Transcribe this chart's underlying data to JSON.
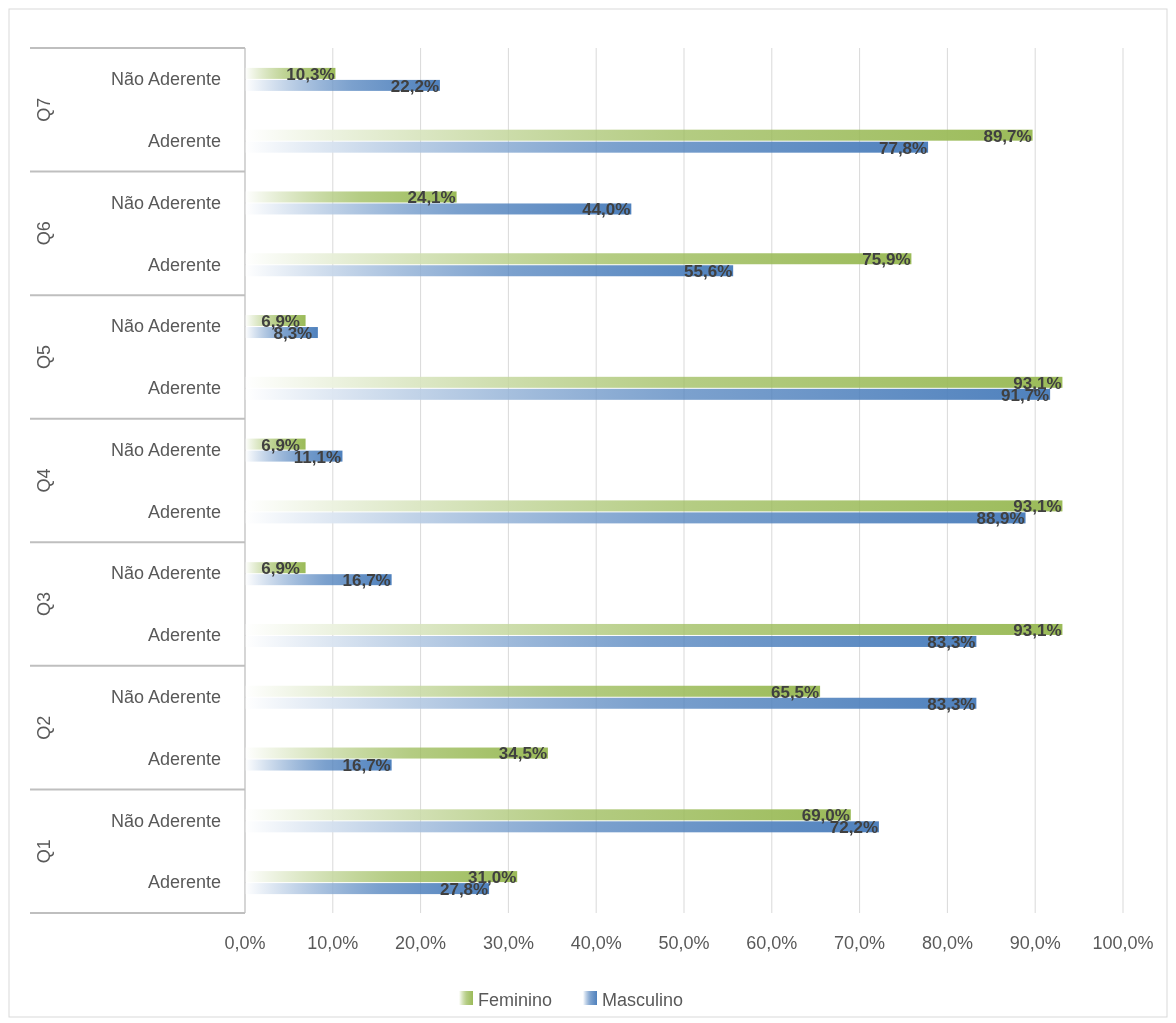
{
  "chart_data": {
    "type": "bar",
    "orientation": "horizontal",
    "categories": [
      "Não Aderente",
      "Aderente",
      "Não Aderente",
      "Aderente",
      "Não Aderente",
      "Aderente",
      "Não Aderente",
      "Aderente",
      "Não Aderente",
      "Aderente",
      "Não Aderente",
      "Aderente",
      "Não Aderente",
      "Aderente"
    ],
    "annotations": [
      "Q7",
      "Q6",
      "Q5",
      "Q4",
      "Q3",
      "Q2",
      "Q1"
    ],
    "series": [
      {
        "name": "Feminino",
        "color": "#9bbb59",
        "values": [
          10.3,
          89.7,
          24.1,
          75.9,
          6.9,
          93.1,
          6.9,
          93.1,
          6.9,
          93.1,
          65.5,
          34.5,
          69.0,
          31.0
        ],
        "value_labels": [
          "10,3%",
          "89,7%",
          "24,1%",
          "75,9%",
          "6,9%",
          "93,1%",
          "6,9%",
          "93,1%",
          "6,9%",
          "93,1%",
          "65,5%",
          "34,5%",
          "69,0%",
          "31,0%"
        ]
      },
      {
        "name": "Masculino",
        "color": "#4f81bd",
        "values": [
          22.2,
          77.8,
          44.0,
          55.6,
          8.3,
          91.7,
          11.1,
          88.9,
          16.7,
          83.3,
          83.3,
          16.7,
          72.2,
          27.8
        ],
        "value_labels": [
          "22,2%",
          "77,8%",
          "44,0%",
          "55,6%",
          "8,3%",
          "91,7%",
          "11,1%",
          "88,9%",
          "16,7%",
          "83,3%",
          "83,3%",
          "16,7%",
          "72,2%",
          "27,8%"
        ]
      }
    ],
    "xlim": [
      0,
      100
    ],
    "xticks": [
      {
        "value": 0,
        "label": "0,0%"
      },
      {
        "value": 10,
        "label": "10,0%"
      },
      {
        "value": 20,
        "label": "20,0%"
      },
      {
        "value": 30,
        "label": "30,0%"
      },
      {
        "value": 40,
        "label": "40,0%"
      },
      {
        "value": 50,
        "label": "50,0%"
      },
      {
        "value": 60,
        "label": "60,0%"
      },
      {
        "value": 70,
        "label": "70,0%"
      },
      {
        "value": 80,
        "label": "80,0%"
      },
      {
        "value": 90,
        "label": "90,0%"
      },
      {
        "value": 100,
        "label": "100,0%"
      }
    ],
    "grid": "x",
    "legend": "bottom"
  }
}
